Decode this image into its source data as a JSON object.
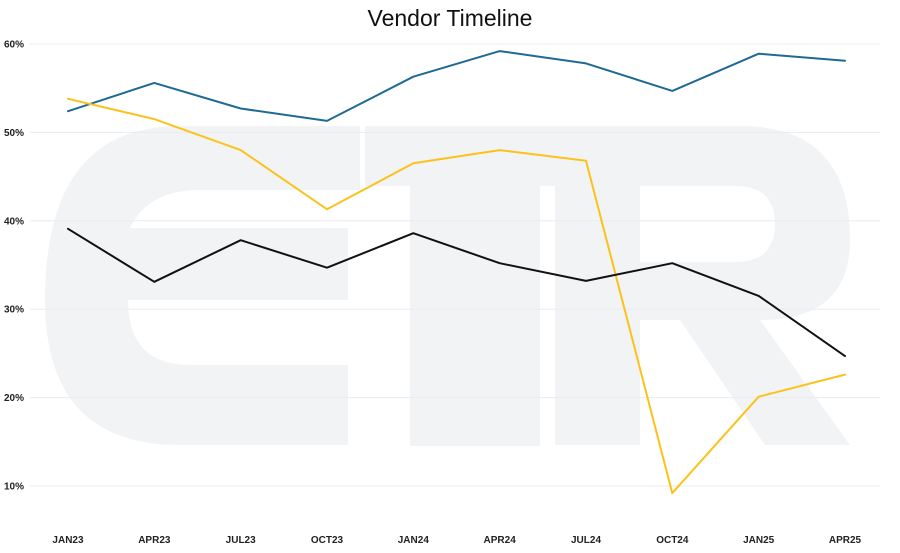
{
  "chart_data": {
    "type": "line",
    "title": "Vendor Timeline",
    "xlabel": "",
    "ylabel": "",
    "categories": [
      "JAN23",
      "APR23",
      "JUL23",
      "OCT23",
      "JAN24",
      "APR24",
      "JUL24",
      "OCT24",
      "JAN25",
      "APR25"
    ],
    "ylim": [
      10,
      60
    ],
    "yticks": [
      "10%",
      "20%",
      "30%",
      "40%",
      "50%",
      "60%"
    ],
    "grid": true,
    "legend": "none",
    "series": [
      {
        "color": "#1f6a95",
        "values": [
          52.4,
          55.6,
          52.7,
          51.3,
          56.3,
          59.2,
          57.8,
          54.7,
          58.9,
          58.1
        ]
      },
      {
        "color": "#fcc21b",
        "values": [
          53.8,
          51.5,
          48.0,
          41.3,
          46.5,
          48.0,
          46.8,
          9.2,
          20.1,
          22.6
        ]
      },
      {
        "color": "#111111",
        "values": [
          39.1,
          33.1,
          37.8,
          34.7,
          38.6,
          35.2,
          33.2,
          35.2,
          31.5,
          24.7
        ]
      }
    ],
    "watermark": "ETR"
  }
}
